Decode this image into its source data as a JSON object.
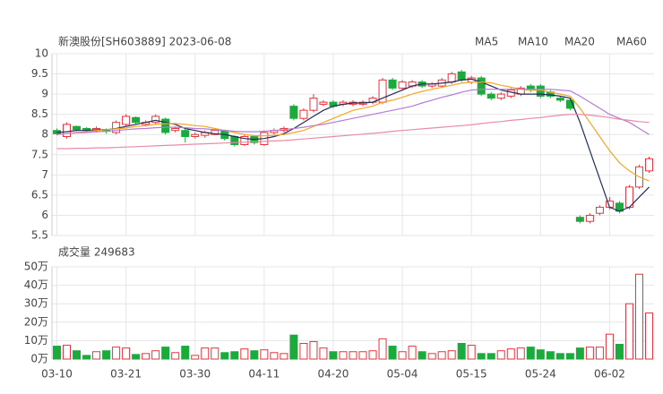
{
  "chart_data": [
    {
      "type": "candlestick",
      "title": "新澳股份[SH603889] 2023-06-08",
      "up_color": "#e8323c",
      "down_color": "#1aab3c",
      "grid": true,
      "ylim": [
        5.5,
        10
      ],
      "yticks": [
        10,
        9.5,
        9,
        8.5,
        8,
        7.5,
        7,
        6.5,
        6,
        5.5
      ],
      "open": [
        8.1,
        7.95,
        8.2,
        8.15,
        8.1,
        8.12,
        8.05,
        8.25,
        8.42,
        8.25,
        8.3,
        8.38,
        8.1,
        8.1,
        7.95,
        7.98,
        8.0,
        8.1,
        7.95,
        7.75,
        7.95,
        7.75,
        8.05,
        8.1,
        8.7,
        8.4,
        8.6,
        8.75,
        8.8,
        8.75,
        8.75,
        8.75,
        8.8,
        8.8,
        9.35,
        9.15,
        9.2,
        9.3,
        9.2,
        9.2,
        9.3,
        9.55,
        9.3,
        9.4,
        9.0,
        8.9,
        8.95,
        9.0,
        9.2,
        9.2,
        9.05,
        8.9,
        8.85,
        5.95,
        5.85,
        6.05,
        6.2,
        6.3,
        6.2,
        6.7,
        7.1
      ],
      "close": [
        8.02,
        8.25,
        8.12,
        8.1,
        8.15,
        8.08,
        8.3,
        8.45,
        8.3,
        8.3,
        8.45,
        8.05,
        8.15,
        7.95,
        8.0,
        8.05,
        8.1,
        7.9,
        7.75,
        7.95,
        7.8,
        8.05,
        8.1,
        8.15,
        8.4,
        8.6,
        8.9,
        8.8,
        8.7,
        8.8,
        8.8,
        8.8,
        8.9,
        9.35,
        9.15,
        9.3,
        9.3,
        9.2,
        9.25,
        9.35,
        9.5,
        9.35,
        9.4,
        9.0,
        8.9,
        9.0,
        9.1,
        9.15,
        9.1,
        8.95,
        8.95,
        8.85,
        8.65,
        5.85,
        6.0,
        6.2,
        6.35,
        6.1,
        6.7,
        7.2,
        7.4
      ],
      "high": [
        8.15,
        8.3,
        8.22,
        8.18,
        8.2,
        8.15,
        8.35,
        8.5,
        8.45,
        8.35,
        8.5,
        8.42,
        8.2,
        8.15,
        8.05,
        8.1,
        8.15,
        8.12,
        7.98,
        8.0,
        7.98,
        8.1,
        8.15,
        8.2,
        8.75,
        8.65,
        9.0,
        8.85,
        8.85,
        8.85,
        8.85,
        8.85,
        8.95,
        9.4,
        9.4,
        9.35,
        9.35,
        9.35,
        9.3,
        9.4,
        9.55,
        9.6,
        9.45,
        9.45,
        9.05,
        9.05,
        9.15,
        9.2,
        9.25,
        9.25,
        9.1,
        8.95,
        8.9,
        6.0,
        6.05,
        6.25,
        6.45,
        6.35,
        6.75,
        7.25,
        7.45
      ],
      "low": [
        7.98,
        7.9,
        8.08,
        8.05,
        8.05,
        8.02,
        8.0,
        8.2,
        8.25,
        8.2,
        8.25,
        8.0,
        8.05,
        7.8,
        7.9,
        7.92,
        7.98,
        7.85,
        7.7,
        7.72,
        7.75,
        7.72,
        8.0,
        8.05,
        8.35,
        8.35,
        8.55,
        8.7,
        8.65,
        8.7,
        8.7,
        8.7,
        8.75,
        8.75,
        9.1,
        9.1,
        9.15,
        9.15,
        9.15,
        9.15,
        9.25,
        9.3,
        9.25,
        8.95,
        8.85,
        8.85,
        8.9,
        8.95,
        9.05,
        8.9,
        8.9,
        8.8,
        8.6,
        5.8,
        5.8,
        6.0,
        6.15,
        6.05,
        6.15,
        6.65,
        7.05
      ],
      "series": [
        {
          "name": "MA5",
          "color": "#1f2d5a",
          "values": [
            8.05,
            8.07,
            8.1,
            8.1,
            8.12,
            8.12,
            8.15,
            8.2,
            8.25,
            8.3,
            8.35,
            8.3,
            8.25,
            8.15,
            8.1,
            8.05,
            8.02,
            8.0,
            7.95,
            7.9,
            7.88,
            7.9,
            7.95,
            8.02,
            8.15,
            8.3,
            8.45,
            8.6,
            8.7,
            8.75,
            8.78,
            8.78,
            8.8,
            8.9,
            9.0,
            9.1,
            9.2,
            9.25,
            9.25,
            9.27,
            9.3,
            9.35,
            9.37,
            9.3,
            9.2,
            9.1,
            9.05,
            9.0,
            9.0,
            9.0,
            8.98,
            8.95,
            8.9,
            8.3,
            7.6,
            6.9,
            6.2,
            6.1,
            6.2,
            6.45,
            6.7
          ]
        },
        {
          "name": "MA10",
          "color": "#f5a623",
          "values": [
            8.0,
            8.02,
            8.05,
            8.07,
            8.1,
            8.12,
            8.14,
            8.16,
            8.2,
            8.22,
            8.25,
            8.27,
            8.27,
            8.25,
            8.22,
            8.2,
            8.15,
            8.1,
            8.05,
            8.0,
            7.97,
            7.97,
            7.98,
            8.0,
            8.05,
            8.1,
            8.2,
            8.3,
            8.4,
            8.5,
            8.6,
            8.65,
            8.7,
            8.8,
            8.85,
            8.92,
            9.0,
            9.07,
            9.12,
            9.17,
            9.22,
            9.27,
            9.3,
            9.3,
            9.28,
            9.22,
            9.17,
            9.12,
            9.1,
            9.1,
            9.05,
            9.0,
            8.95,
            8.65,
            8.3,
            7.95,
            7.6,
            7.3,
            7.1,
            6.95,
            6.85
          ]
        },
        {
          "name": "MA20",
          "color": "#b77ad6",
          "values": [
            8.0,
            8.02,
            8.04,
            8.05,
            8.07,
            8.08,
            8.1,
            8.12,
            8.14,
            8.15,
            8.17,
            8.18,
            8.18,
            8.17,
            8.15,
            8.14,
            8.12,
            8.1,
            8.08,
            8.07,
            8.07,
            8.08,
            8.1,
            8.12,
            8.15,
            8.18,
            8.22,
            8.25,
            8.3,
            8.35,
            8.4,
            8.45,
            8.5,
            8.55,
            8.6,
            8.65,
            8.7,
            8.78,
            8.85,
            8.92,
            8.98,
            9.05,
            9.1,
            9.12,
            9.12,
            9.12,
            9.12,
            9.12,
            9.12,
            9.12,
            9.12,
            9.1,
            9.08,
            8.95,
            8.8,
            8.65,
            8.5,
            8.4,
            8.3,
            8.15,
            8.0
          ]
        },
        {
          "name": "MA60",
          "color": "#e88ca8",
          "values": [
            7.65,
            7.65,
            7.66,
            7.66,
            7.67,
            7.67,
            7.68,
            7.69,
            7.7,
            7.71,
            7.72,
            7.73,
            7.74,
            7.75,
            7.76,
            7.77,
            7.78,
            7.79,
            7.8,
            7.81,
            7.82,
            7.83,
            7.84,
            7.85,
            7.87,
            7.89,
            7.91,
            7.93,
            7.95,
            7.97,
            7.99,
            8.01,
            8.03,
            8.05,
            8.08,
            8.1,
            8.12,
            8.14,
            8.16,
            8.18,
            8.2,
            8.22,
            8.24,
            8.27,
            8.3,
            8.32,
            8.35,
            8.37,
            8.4,
            8.42,
            8.45,
            8.48,
            8.5,
            8.5,
            8.48,
            8.45,
            8.42,
            8.38,
            8.35,
            8.32,
            8.3
          ]
        }
      ]
    },
    {
      "type": "bar",
      "title": "成交量 249683",
      "categories": [
        "03-10",
        null,
        null,
        null,
        null,
        null,
        null,
        "03-21",
        null,
        null,
        null,
        null,
        null,
        null,
        "03-30",
        null,
        null,
        null,
        null,
        null,
        null,
        "04-11",
        null,
        null,
        null,
        null,
        null,
        null,
        "04-20",
        null,
        null,
        null,
        null,
        null,
        null,
        "05-04",
        null,
        null,
        null,
        null,
        null,
        null,
        "05-15",
        null,
        null,
        null,
        null,
        null,
        null,
        "05-24",
        null,
        null,
        null,
        null,
        null,
        null,
        "06-02",
        null,
        null,
        null,
        null
      ],
      "values": [
        7,
        7.5,
        4.5,
        2,
        4,
        4.5,
        6.5,
        6,
        2.5,
        3,
        4.5,
        6.5,
        3.5,
        7,
        2,
        6,
        6,
        3.5,
        4,
        5.5,
        4.5,
        5,
        3.5,
        3,
        13,
        8.5,
        9.5,
        6,
        4,
        4,
        4,
        4,
        4.5,
        11,
        7,
        4,
        7,
        4,
        3,
        4,
        4.5,
        8.5,
        7.5,
        3,
        3,
        4.5,
        5.5,
        6,
        6.5,
        5,
        4,
        3,
        3,
        6,
        6.5,
        6.5,
        13.5,
        8,
        30,
        46,
        25
      ],
      "ylim": [
        0,
        50
      ],
      "yticks": [
        {
          "value": 50,
          "label": "50万"
        },
        {
          "value": 40,
          "label": "40万"
        },
        {
          "value": 30,
          "label": "30万"
        },
        {
          "value": 20,
          "label": "20万"
        },
        {
          "value": 10,
          "label": "10万"
        },
        {
          "value": 0,
          "label": "0万"
        }
      ]
    }
  ]
}
